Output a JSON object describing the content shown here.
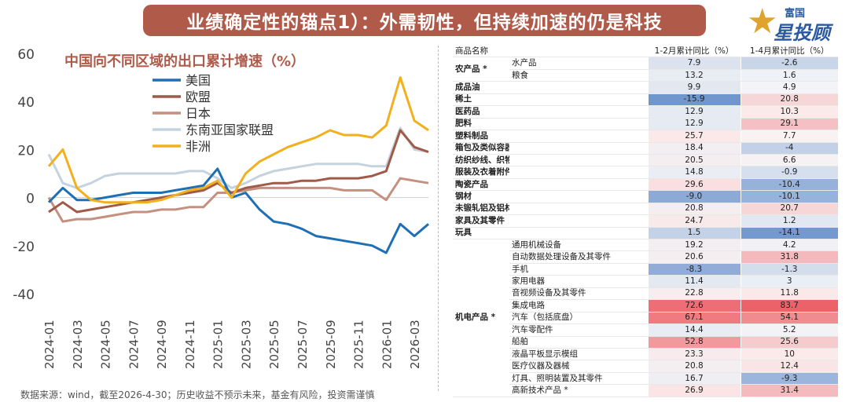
{
  "header": {
    "title": "业绩确定性的锚点1）：外需韧性，但持续加速的仍是科技"
  },
  "logo": {
    "top": "富国",
    "brand": "星投顾"
  },
  "chart_title": "中国向不同区域的出口累计增速（%）",
  "footnote": "数据来源：wind，截至2026-4-30；历史收益不预示未来，基金有风险，投资需谨慎",
  "chart_data": {
    "type": "line",
    "ylim": [
      -40,
      60
    ],
    "yticks": [
      -40,
      -20,
      0,
      20,
      40,
      60
    ],
    "xtick_labels": [
      "2024-01",
      "2024-03",
      "2024-05",
      "2024-07",
      "2024-09",
      "2024-11",
      "2025-01",
      "2025-03",
      "2025-05",
      "2025-07",
      "2025-09",
      "2025-11",
      "2026-01",
      "2026-03"
    ],
    "x": [
      "2024-01",
      "2024-02",
      "2024-03",
      "2024-04",
      "2024-05",
      "2024-06",
      "2024-07",
      "2024-08",
      "2024-09",
      "2024-10",
      "2024-11",
      "2024-12",
      "2025-01",
      "2025-02",
      "2025-03",
      "2025-04",
      "2025-05",
      "2025-06",
      "2025-07",
      "2025-08",
      "2025-09",
      "2025-10",
      "2025-11",
      "2025-12",
      "2026-01",
      "2026-02",
      "2026-03",
      "2026-04"
    ],
    "legend_position": "top-left",
    "series": [
      {
        "name": "美国",
        "color": "#1f6fb5",
        "values": [
          -2,
          4,
          -1,
          -1,
          0,
          1,
          2,
          2,
          2,
          3,
          4,
          5,
          12,
          0,
          2,
          -5,
          -10,
          -11,
          -13,
          -16,
          -17,
          -18,
          -19,
          -20,
          -23,
          -11,
          -16,
          -11
        ]
      },
      {
        "name": "欧盟",
        "color": "#a05a48",
        "values": [
          -6,
          -2,
          -6,
          -5,
          -4,
          -3,
          -2,
          -1,
          0,
          1,
          2,
          3,
          6,
          2,
          4,
          5,
          6,
          6,
          7,
          7,
          8,
          8,
          8,
          9,
          11,
          28,
          21,
          19
        ]
      },
      {
        "name": "日本",
        "color": "#c49080",
        "values": [
          0,
          -10,
          -9,
          -9,
          -8,
          -7,
          -6,
          -6,
          -5,
          -5,
          -4,
          -4,
          2,
          2,
          3,
          4,
          4,
          4,
          4,
          4,
          4,
          3,
          3,
          3,
          -1,
          8,
          7,
          6
        ]
      },
      {
        "name": "东南亚国家联盟",
        "color": "#c5d3de",
        "values": [
          18,
          6,
          4,
          6,
          9,
          10,
          10,
          10,
          10,
          10,
          11,
          11,
          8,
          4,
          6,
          9,
          11,
          12,
          13,
          14,
          14,
          14,
          14,
          13,
          13,
          29,
          20,
          19
        ]
      },
      {
        "name": "非洲",
        "color": "#f2b01e",
        "values": [
          13,
          20,
          4,
          -1,
          -2,
          -2,
          -2,
          -2,
          -1,
          1,
          3,
          4,
          7,
          0,
          10,
          15,
          18,
          21,
          23,
          25,
          28,
          26,
          26,
          25,
          30,
          50,
          32,
          28
        ]
      }
    ]
  },
  "table": {
    "headers": [
      "商品名称",
      "",
      "1-2月累计同比（%）",
      "1-4月累计同比（%）"
    ],
    "rows": [
      {
        "cat": "农产品 *",
        "span": 2,
        "sub": "水产品",
        "a": "7.9",
        "b": "-2.6",
        "ca": "#dce3ef",
        "cb": "#c9d6ea"
      },
      {
        "sub": "粮食",
        "a": "13.2",
        "b": "1.6",
        "ca": "#e8ecf3",
        "cb": "#eef1f6"
      },
      {
        "cat": "成品油",
        "span": 1,
        "sub": "",
        "a": "9.9",
        "b": "4.9",
        "ca": "#e2e7f0",
        "cb": "#f4f4f8"
      },
      {
        "cat": "稀土",
        "span": 1,
        "sub": "",
        "a": "-15.9",
        "b": "20.8",
        "ca": "#6f97cd",
        "cb": "#f7d6d8"
      },
      {
        "cat": "医药品",
        "span": 1,
        "sub": "",
        "a": "12.9",
        "b": "10.3",
        "ca": "#e6eaf2",
        "cb": "#fbeaea"
      },
      {
        "cat": "肥料",
        "span": 1,
        "sub": "",
        "a": "12.9",
        "b": "29.1",
        "ca": "#e6eaf2",
        "cb": "#f5c0c3"
      },
      {
        "cat": "塑料制品",
        "span": 1,
        "sub": "",
        "a": "25.7",
        "b": "7.7",
        "ca": "#fbe8e8",
        "cb": "#f8f2f3"
      },
      {
        "cat": "箱包及类似容器",
        "span": 1,
        "sub": "",
        "a": "18.4",
        "b": "-4",
        "ca": "#f2eef2",
        "cb": "#c2d1e8"
      },
      {
        "cat": "纺织纱线、织物及其制品",
        "span": 1,
        "sub": "",
        "a": "20.5",
        "b": "6.6",
        "ca": "#f5eef0",
        "cb": "#f6f2f4"
      },
      {
        "cat": "服装及衣着附件",
        "span": 1,
        "sub": "",
        "a": "14.8",
        "b": "-0.9",
        "ca": "#eaedf3",
        "cb": "#d6dfee"
      },
      {
        "cat": "陶瓷产品",
        "span": 1,
        "sub": "",
        "a": "29.6",
        "b": "-10.4",
        "ca": "#f9dfe0",
        "cb": "#96b2db"
      },
      {
        "cat": "钢材",
        "span": 1,
        "sub": "",
        "a": "-9.0",
        "b": "-10.1",
        "ca": "#8daad6",
        "cb": "#98b3db"
      },
      {
        "cat": "未锻轧铝及铝材",
        "span": 1,
        "sub": "",
        "a": "20.8",
        "b": "20.7",
        "ca": "#f5eef0",
        "cb": "#f7d6d8"
      },
      {
        "cat": "家具及其零件",
        "span": 1,
        "sub": "",
        "a": "24.7",
        "b": "1.2",
        "ca": "#f8e9ea",
        "cb": "#e2e8f2"
      },
      {
        "cat": "玩具",
        "span": 1,
        "sub": "",
        "a": "1.5",
        "b": "-14.1",
        "ca": "#c4d2e8",
        "cb": "#7399cf"
      },
      {
        "cat": "机电产品 *",
        "span": 13,
        "sub": "通用机械设备",
        "a": "19.2",
        "b": "4.2",
        "ca": "#f3eef1",
        "cb": "#f0f0f5"
      },
      {
        "sub": "自动数据处理设备及其零件",
        "a": "20.6",
        "b": "31.8",
        "ca": "#f5eef0",
        "cb": "#f4b9bc"
      },
      {
        "sub": "手机",
        "a": "-8.3",
        "b": "-1.3",
        "ca": "#90acd7",
        "cb": "#d3ddec"
      },
      {
        "sub": "家用电器",
        "a": "11.4",
        "b": "3",
        "ca": "#e4e8f1",
        "cb": "#eaeef5"
      },
      {
        "sub": "音视频设备及其零件",
        "a": "22.8",
        "b": "11.8",
        "ca": "#f7ecee",
        "cb": "#fbe9ea"
      },
      {
        "sub": "集成电路",
        "a": "72.6",
        "b": "83.7",
        "ca": "#ee6e75",
        "cb": "#ec6269"
      },
      {
        "sub": "汽车（包括底盘）",
        "a": "67.1",
        "b": "54.1",
        "ca": "#ef7b81",
        "cb": "#f08b90"
      },
      {
        "sub": "汽车零配件",
        "a": "14.4",
        "b": "5.2",
        "ca": "#e9ecf3",
        "cb": "#f3f3f7"
      },
      {
        "sub": "船舶",
        "a": "52.8",
        "b": "25.6",
        "ca": "#f2999e",
        "cb": "#f6cbcd"
      },
      {
        "sub": "液晶平板显示模组",
        "a": "23.3",
        "b": "10",
        "ca": "#f7ebed",
        "cb": "#fbeaea"
      },
      {
        "sub": "医疗仪器及器械",
        "a": "20.8",
        "b": "12.4",
        "ca": "#f5eef0",
        "cb": "#fae5e6"
      },
      {
        "sub": "灯具、照明装置及其零件",
        "a": "16.7",
        "b": "-9.3",
        "ca": "#eeeef3",
        "cb": "#9cb5dc"
      },
      {
        "sub": "高新技术产品 *",
        "a": "26.9",
        "b": "31.4",
        "ca": "#fae4e5",
        "cb": "#f4bbbe"
      }
    ]
  }
}
